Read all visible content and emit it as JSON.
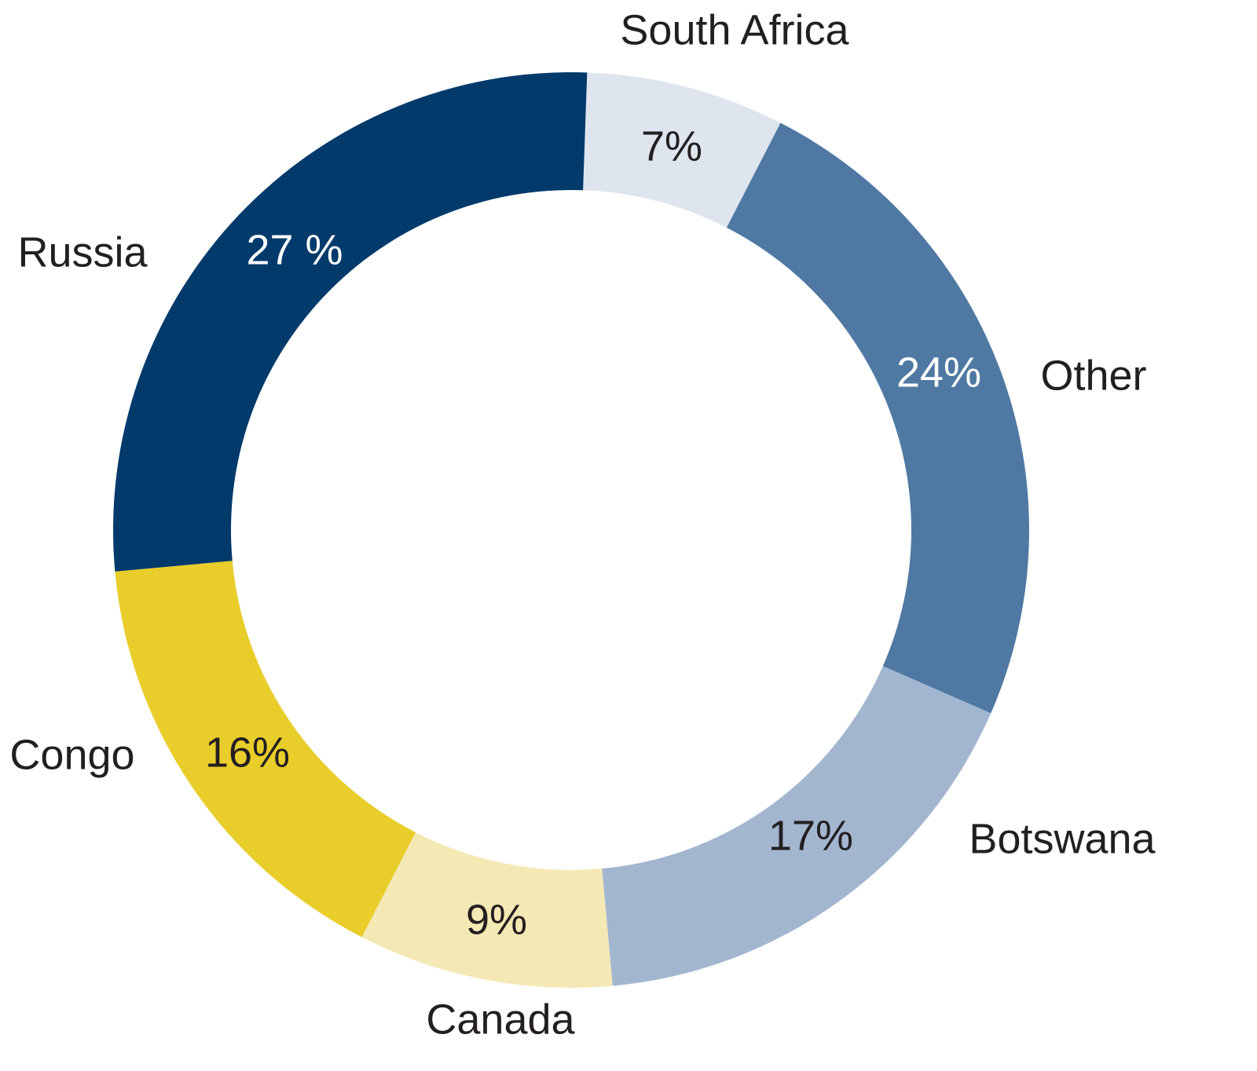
{
  "chart_data": {
    "type": "donut",
    "categories": [
      "South Africa",
      "Other",
      "Botswana",
      "Canada",
      "Congo",
      "Russia"
    ],
    "values": [
      7,
      24,
      17,
      9,
      16,
      27
    ],
    "value_labels": [
      "7%",
      "24%",
      "17%",
      "9%",
      "16%",
      "27 %"
    ],
    "colors": [
      "#dfe5ef",
      "#4f79a3",
      "#a3b6d0",
      "#f4e8b4",
      "#e9cd2b",
      "#013a6b"
    ]
  }
}
